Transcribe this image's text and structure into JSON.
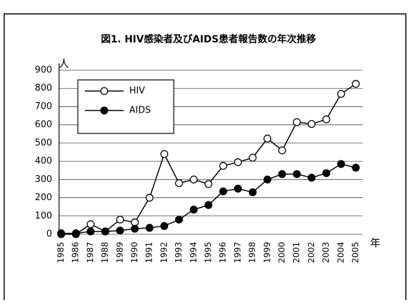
{
  "chart_data": {
    "type": "line",
    "title": "図1. HIV感染者及びAIDS患者報告数の年次推移",
    "y_label": "人",
    "x_label": "年",
    "categories": [
      "1985",
      "1986",
      "1987",
      "1988",
      "1989",
      "1990",
      "1991",
      "1992",
      "1993",
      "1994",
      "1995",
      "1996",
      "1997",
      "1998",
      "1999",
      "2000",
      "2001",
      "2002",
      "2003",
      "2004",
      "2005"
    ],
    "series": [
      {
        "name": "HIV",
        "color": "#000000",
        "marker": "open",
        "values": [
          0,
          0,
          55,
          15,
          80,
          65,
          200,
          440,
          280,
          300,
          275,
          375,
          395,
          420,
          525,
          460,
          615,
          605,
          630,
          770,
          825
        ]
      },
      {
        "name": "AIDS",
        "color": "#000000",
        "marker": "filled",
        "values": [
          5,
          5,
          15,
          15,
          20,
          30,
          35,
          45,
          80,
          135,
          160,
          235,
          250,
          230,
          300,
          330,
          330,
          310,
          335,
          385,
          365
        ]
      }
    ],
    "ylim": [
      0,
      900
    ],
    "yticks": [
      0,
      100,
      200,
      300,
      400,
      500,
      600,
      700,
      800,
      900
    ],
    "grid": true,
    "legend": "upper left"
  }
}
